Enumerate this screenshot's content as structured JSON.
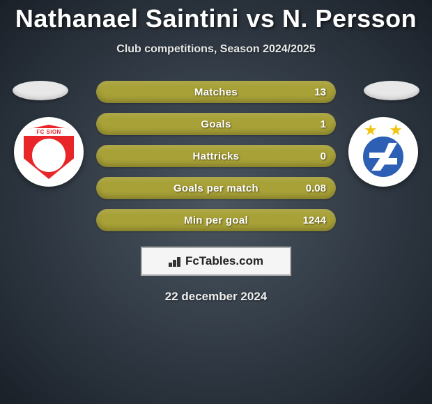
{
  "header": {
    "player_left": "Nathanael Saintini",
    "vs": "vs",
    "player_right": "N. Persson",
    "subtitle": "Club competitions, Season 2024/2025"
  },
  "clubs": {
    "left": {
      "name": "FC Sion",
      "primary_color": "#e8262a",
      "secondary_color": "#ffffff"
    },
    "right": {
      "name": "Grasshopper",
      "primary_color": "#2d5fb4",
      "star_color": "#f2c40e"
    }
  },
  "stats": {
    "bar_color": "#a8a137",
    "label_color": "#ffffff",
    "rows": [
      {
        "label": "Matches",
        "value": "13"
      },
      {
        "label": "Goals",
        "value": "1"
      },
      {
        "label": "Hattricks",
        "value": "0"
      },
      {
        "label": "Goals per match",
        "value": "0.08"
      },
      {
        "label": "Min per goal",
        "value": "1244"
      }
    ]
  },
  "brand": {
    "text": "FcTables.com"
  },
  "date": "22 december 2024",
  "colors": {
    "background_inner": "#4a5560",
    "background_outer": "#1a2028",
    "title": "#ffffff"
  }
}
